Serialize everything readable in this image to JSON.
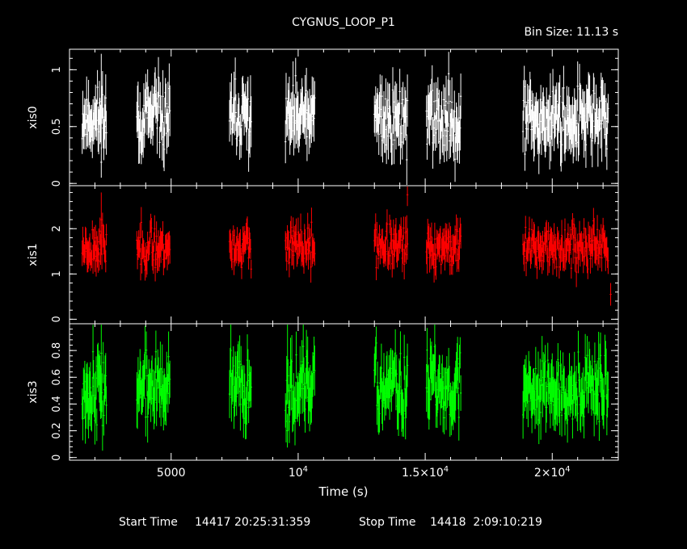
{
  "chart_data": {
    "type": "scatter",
    "title": "CYGNUS_LOOP_P1",
    "bin_size_label": "Bin Size: 11.13 s",
    "xlabel": "Time (s)",
    "xlim": [
      1000,
      22600
    ],
    "x_ticks": [
      {
        "value": 5000,
        "label": "5000"
      },
      {
        "value": 10000,
        "label": "10",
        "exp": "4"
      },
      {
        "value": 15000,
        "label": "1.5×10",
        "exp": "4"
      },
      {
        "value": 20000,
        "label": "2×10",
        "exp": "4"
      }
    ],
    "footer": {
      "start_label": "Start Time",
      "start_value": "14417 20:25:31:359",
      "stop_label": "Stop Time",
      "stop_value": "14418  2:09:10:219"
    },
    "segments": [
      [
        1500,
        2450
      ],
      [
        3650,
        4950
      ],
      [
        7300,
        8150
      ],
      [
        9500,
        10650
      ],
      [
        13000,
        14300
      ],
      [
        15050,
        16400
      ],
      [
        18850,
        22200
      ]
    ],
    "panels": [
      {
        "ylabel": "xis0",
        "color": "#ffffff",
        "ylim": [
          -0.02,
          1.18
        ],
        "y_ticks": [
          {
            "value": 0,
            "label": "0"
          },
          {
            "value": 0.5,
            "label": "0.5"
          },
          {
            "value": 1,
            "label": "1"
          }
        ],
        "mean": 0.57,
        "spread": 0.14,
        "err": 0.18,
        "seed": 11,
        "series": [
          {
            "x": 2250,
            "y": 0.72,
            "err": 0.42
          },
          {
            "x": 21950,
            "y": 0.55,
            "err": 0.36
          }
        ]
      },
      {
        "ylabel": "xis1",
        "color": "#ff0000",
        "ylim": [
          -0.1,
          2.95
        ],
        "y_ticks": [
          {
            "value": 0,
            "label": "0"
          },
          {
            "value": 1,
            "label": "1"
          },
          {
            "value": 2,
            "label": "2"
          }
        ],
        "mean": 1.6,
        "spread": 0.22,
        "err": 0.28,
        "seed": 23,
        "series": [
          {
            "x": 2250,
            "y": 2.2,
            "err": 0.6
          },
          {
            "x": 14300,
            "y": 2.75,
            "err": 0.25
          },
          {
            "x": 22300,
            "y": 0.55,
            "err": 0.25
          }
        ]
      },
      {
        "ylabel": "xis3",
        "color": "#00ff00",
        "ylim": [
          -0.02,
          1.0
        ],
        "y_ticks": [
          {
            "value": 0,
            "label": "0"
          },
          {
            "value": 0.2,
            "label": "0.2"
          },
          {
            "value": 0.4,
            "label": "0.4"
          },
          {
            "value": 0.6,
            "label": "0.6"
          },
          {
            "value": 0.8,
            "label": "0.8"
          }
        ],
        "mean": 0.52,
        "spread": 0.13,
        "err": 0.16,
        "seed": 37,
        "series": [
          {
            "x": 2250,
            "y": 0.78,
            "err": 0.22
          },
          {
            "x": 9580,
            "y": 0.7,
            "err": 0.3
          }
        ]
      }
    ]
  }
}
